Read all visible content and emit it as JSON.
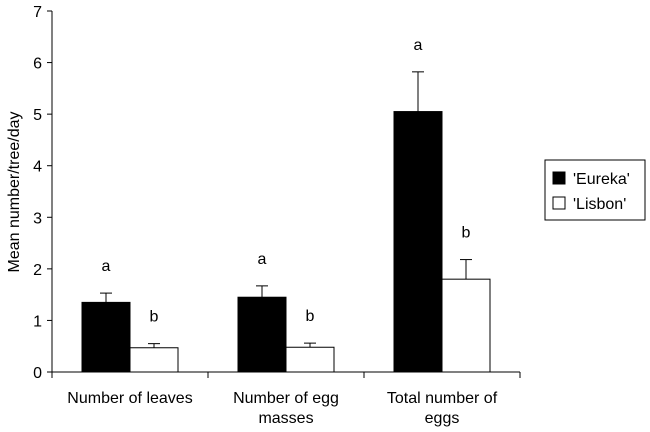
{
  "chart_data": {
    "type": "bar",
    "title": "",
    "xlabel": "",
    "ylabel": "Mean number/tree/day",
    "ylim": [
      0,
      7
    ],
    "yticks": [
      0,
      1,
      2,
      3,
      4,
      5,
      6,
      7
    ],
    "grid": false,
    "legend_position": "right",
    "categories": [
      [
        "Number of leaves"
      ],
      [
        "Number of egg",
        "masses"
      ],
      [
        "Total number of",
        "eggs"
      ]
    ],
    "series": [
      {
        "name": "'Eureka'",
        "color": "#000000",
        "values": [
          1.35,
          1.45,
          5.05
        ],
        "errors": [
          0.18,
          0.22,
          0.77
        ],
        "labels": [
          "a",
          "a",
          "a"
        ]
      },
      {
        "name": "'Lisbon'",
        "color": "#ffffff",
        "values": [
          0.47,
          0.48,
          1.8
        ],
        "errors": [
          0.08,
          0.08,
          0.38
        ],
        "labels": [
          "b",
          "b",
          "b"
        ]
      }
    ]
  }
}
